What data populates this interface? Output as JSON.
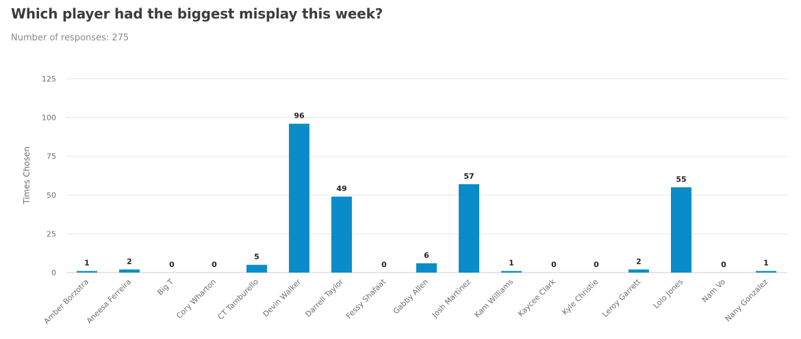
{
  "header": {
    "title": "Which player had the biggest misplay this week?",
    "subtitle": "Number of responses: 275"
  },
  "chart_data": {
    "type": "bar",
    "categories": [
      "Amber Borzotra",
      "Aneesa Ferreira",
      "Big T",
      "Cory Wharton",
      "CT Tamburello",
      "Devin Walker",
      "Darrell Taylor",
      "Fessy Shafaat",
      "Gabby Allen",
      "Josh Martinez",
      "Kam Williams",
      "Kaycee Clark",
      "Kyle Christie",
      "Leroy Garrett",
      "Lolo Jones",
      "Nam Vo",
      "Nany Gonzalez"
    ],
    "values": [
      1,
      2,
      0,
      0,
      5,
      96,
      49,
      0,
      6,
      57,
      1,
      0,
      0,
      2,
      55,
      0,
      1
    ],
    "xlabel": "",
    "ylabel": "Times Chosen",
    "ylim": [
      0,
      125
    ],
    "yticks": [
      0,
      25,
      50,
      75,
      100,
      125
    ],
    "grid": true,
    "legend": "none",
    "colors": {
      "bar": "#0a8cc9",
      "grid": "#e6e6e6",
      "axis": "#cccccc"
    }
  }
}
